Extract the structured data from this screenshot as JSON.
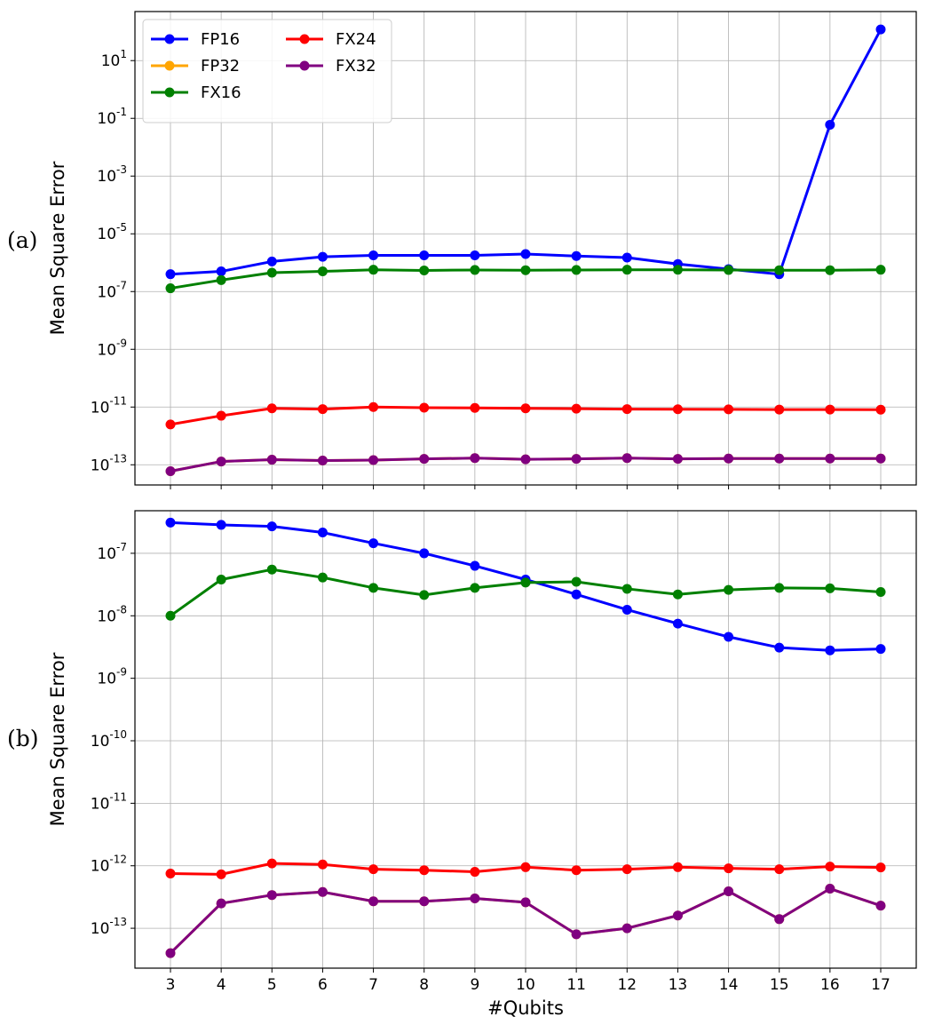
{
  "figure": {
    "panel_labels": [
      "(a)",
      "(b)"
    ],
    "legend": [
      {
        "label": "FP16",
        "color": "#0000ff"
      },
      {
        "label": "FP32",
        "color": "#ffa500"
      },
      {
        "label": "FX16",
        "color": "#008000"
      },
      {
        "label": "FX24",
        "color": "#ff0000"
      },
      {
        "label": "FX32",
        "color": "#800080"
      }
    ]
  },
  "chart_data": [
    {
      "type": "line",
      "panel_label": "(a)",
      "ylabel": "Mean Square Error",
      "xlabel": "",
      "yscale": "log",
      "ylim": [
        2e-14,
        500
      ],
      "yticks": [
        {
          "exp": 1,
          "value": 10
        },
        {
          "exp": -1,
          "value": 0.1
        },
        {
          "exp": -3,
          "value": 0.001
        },
        {
          "exp": -5,
          "value": 1e-05
        },
        {
          "exp": -7,
          "value": 1e-07
        },
        {
          "exp": -9,
          "value": 1e-09
        },
        {
          "exp": -11,
          "value": 1e-11
        },
        {
          "exp": -13,
          "value": 1e-13
        }
      ],
      "x": [
        3,
        4,
        5,
        6,
        7,
        8,
        9,
        10,
        11,
        12,
        13,
        14,
        15,
        16,
        17
      ],
      "xlim": [
        2.3,
        17.7
      ],
      "grid": true,
      "legend": {
        "placement": "top-left",
        "columns": 2
      },
      "series": [
        {
          "name": "FP16",
          "color": "#0000ff",
          "values": [
            4e-07,
            5e-07,
            1.1e-06,
            1.6e-06,
            1.8e-06,
            1.8e-06,
            1.8e-06,
            2e-06,
            1.7e-06,
            1.5e-06,
            9e-07,
            6e-07,
            4e-07,
            0.06,
            120
          ]
        },
        {
          "name": "FP32",
          "color": "#ffa500",
          "values": [
            6e-14,
            1.3e-13,
            1.5e-13,
            1.4e-13,
            1.45e-13,
            1.6e-13,
            1.7e-13,
            1.55e-13,
            1.6e-13,
            1.7e-13,
            1.6e-13,
            1.65e-13,
            1.65e-13,
            1.65e-13,
            1.65e-13
          ]
        },
        {
          "name": "FX16",
          "color": "#008000",
          "values": [
            1.3e-07,
            2.5e-07,
            4.5e-07,
            5e-07,
            5.7e-07,
            5.4e-07,
            5.6e-07,
            5.5e-07,
            5.6e-07,
            5.7e-07,
            5.7e-07,
            5.6e-07,
            5.5e-07,
            5.5e-07,
            5.7e-07
          ]
        },
        {
          "name": "FX24",
          "color": "#ff0000",
          "values": [
            2.5e-12,
            5e-12,
            9e-12,
            8.5e-12,
            1e-11,
            9.5e-12,
            9.3e-12,
            9e-12,
            8.8e-12,
            8.5e-12,
            8.4e-12,
            8.3e-12,
            8.2e-12,
            8.2e-12,
            8.1e-12
          ]
        },
        {
          "name": "FX32",
          "color": "#800080",
          "values": [
            6e-14,
            1.3e-13,
            1.5e-13,
            1.4e-13,
            1.45e-13,
            1.6e-13,
            1.7e-13,
            1.55e-13,
            1.6e-13,
            1.7e-13,
            1.6e-13,
            1.65e-13,
            1.65e-13,
            1.65e-13,
            1.65e-13
          ]
        }
      ]
    },
    {
      "type": "line",
      "panel_label": "(b)",
      "ylabel": "Mean Square Error",
      "xlabel": "#Qubits",
      "yscale": "log",
      "ylim": [
        2.3e-14,
        4.8e-07
      ],
      "yticks": [
        {
          "exp": -7,
          "value": 1e-07
        },
        {
          "exp": -8,
          "value": 1e-08
        },
        {
          "exp": -9,
          "value": 1e-09
        },
        {
          "exp": -10,
          "value": 1e-10
        },
        {
          "exp": -11,
          "value": 1e-11
        },
        {
          "exp": -12,
          "value": 1e-12
        },
        {
          "exp": -13,
          "value": 1e-13
        }
      ],
      "x": [
        3,
        4,
        5,
        6,
        7,
        8,
        9,
        10,
        11,
        12,
        13,
        14,
        15,
        16,
        17
      ],
      "xticks": [
        "3",
        "4",
        "5",
        "6",
        "7",
        "8",
        "9",
        "10",
        "11",
        "12",
        "13",
        "14",
        "15",
        "16",
        "17"
      ],
      "xlim": [
        2.3,
        17.7
      ],
      "grid": true,
      "series": [
        {
          "name": "FP16",
          "color": "#0000ff",
          "values": [
            3.1e-07,
            2.85e-07,
            2.7e-07,
            2.15e-07,
            1.45e-07,
            1e-07,
            6.3e-08,
            3.8e-08,
            2.2e-08,
            1.25e-08,
            7.5e-09,
            4.6e-09,
            3.1e-09,
            2.8e-09,
            2.95e-09
          ]
        },
        {
          "name": "FP32",
          "color": "#ffa500",
          "values": [
            4e-14,
            2.5e-13,
            3.4e-13,
            3.8e-13,
            2.7e-13,
            2.7e-13,
            3e-13,
            2.6e-13,
            8e-14,
            1e-13,
            1.6e-13,
            3.9e-13,
            1.4e-13,
            4.3e-13,
            2.3e-13
          ]
        },
        {
          "name": "FX16",
          "color": "#008000",
          "values": [
            1e-08,
            3.8e-08,
            5.5e-08,
            4.1e-08,
            2.8e-08,
            2.15e-08,
            2.8e-08,
            3.4e-08,
            3.5e-08,
            2.7e-08,
            2.2e-08,
            2.6e-08,
            2.8e-08,
            2.75e-08,
            2.4e-08
          ]
        },
        {
          "name": "FX24",
          "color": "#ff0000",
          "values": [
            7.5e-13,
            7.3e-13,
            1.09e-12,
            1.05e-12,
            8.8e-13,
            8.5e-13,
            8e-13,
            9.5e-13,
            8.5e-13,
            8.8e-13,
            9.5e-13,
            9.1e-13,
            8.8e-13,
            9.7e-13,
            9.4e-13
          ]
        },
        {
          "name": "FX32",
          "color": "#800080",
          "values": [
            4e-14,
            2.5e-13,
            3.4e-13,
            3.8e-13,
            2.7e-13,
            2.7e-13,
            3e-13,
            2.6e-13,
            8e-14,
            1e-13,
            1.6e-13,
            3.9e-13,
            1.4e-13,
            4.3e-13,
            2.3e-13
          ]
        }
      ]
    }
  ]
}
